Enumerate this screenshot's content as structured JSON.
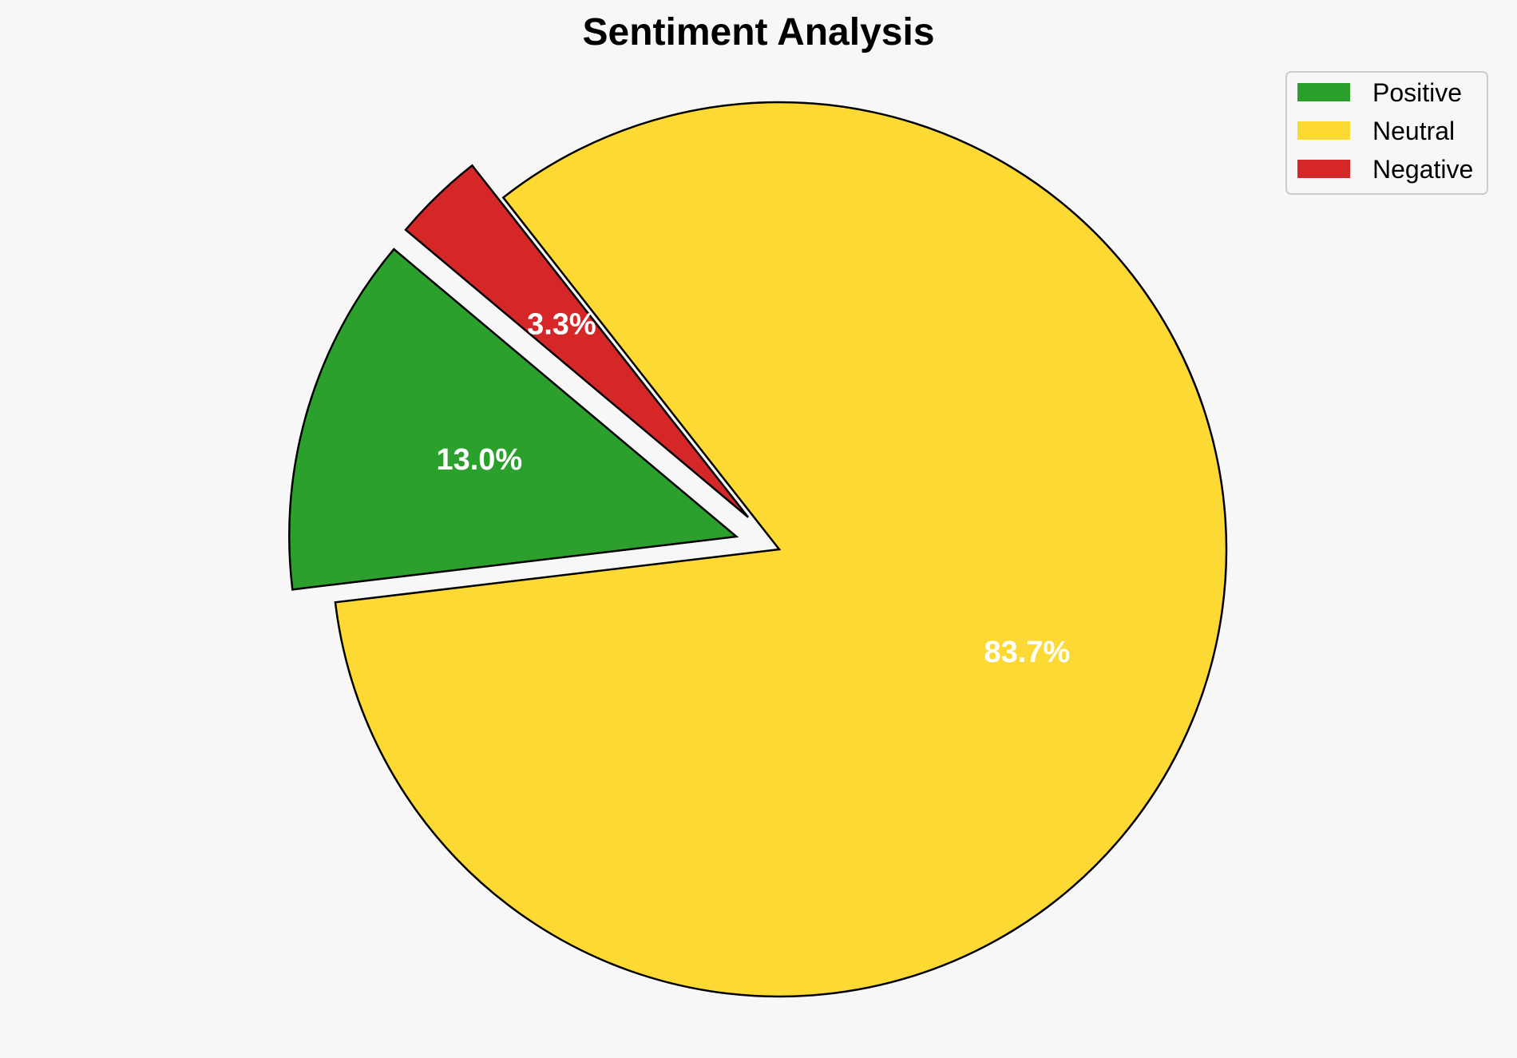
{
  "chart_data": {
    "type": "pie",
    "title": "Sentiment Analysis",
    "categories": [
      "Positive",
      "Neutral",
      "Negative"
    ],
    "values": [
      13.0,
      83.7,
      3.3
    ],
    "labels": [
      "13.0%",
      "83.7%",
      "3.3%"
    ],
    "colors": [
      "#2ca02c",
      "#fdd933",
      "#d62728"
    ],
    "exploded": [
      true,
      false,
      true
    ],
    "start_angle_deg": 140,
    "direction": "counterclockwise",
    "edge_color": "#000000",
    "label_color": "#ffffff",
    "legend": {
      "placement": "top-right",
      "entries": [
        "Positive",
        "Neutral",
        "Negative"
      ]
    },
    "background": "#f7f7f7"
  }
}
